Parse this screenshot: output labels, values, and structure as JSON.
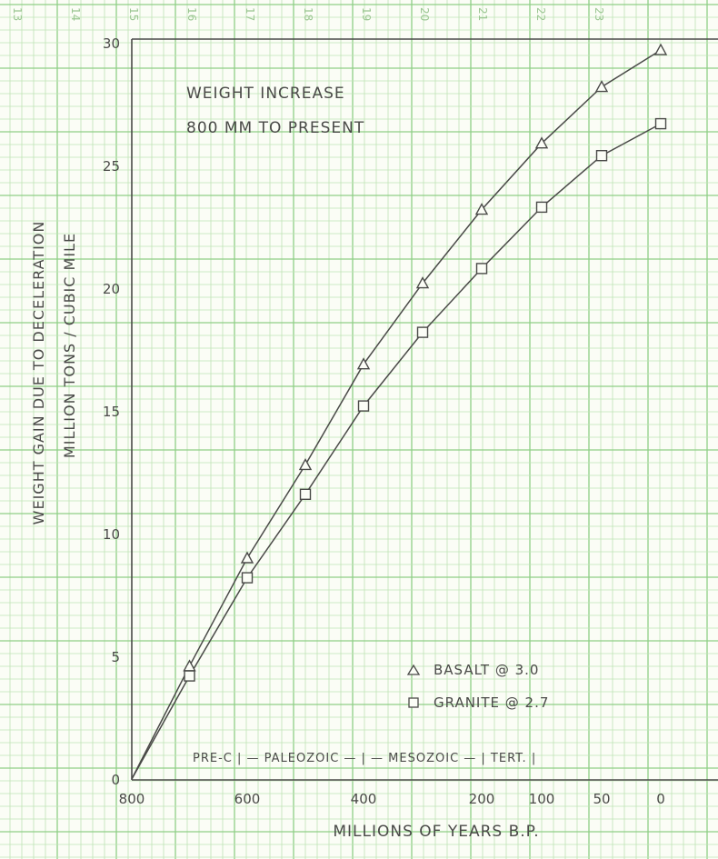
{
  "chart_data": {
    "type": "line",
    "title": "WEIGHT INCREASE",
    "subtitle": "800 MM TO PRESENT",
    "xlabel": "MILLIONS OF YEARS B.P.",
    "ylabel_line1": "WEIGHT GAIN DUE TO DECELERATION",
    "ylabel_line2": "MILLION TONS / CUBIC MILE",
    "xlim": [
      800,
      0
    ],
    "ylim": [
      0,
      30
    ],
    "x_ticks": [
      {
        "value": 800,
        "label": "800"
      },
      {
        "value": 600,
        "label": "600"
      },
      {
        "value": 400,
        "label": "400"
      },
      {
        "value": 200,
        "label": "200"
      },
      {
        "value": 100,
        "label": "100"
      },
      {
        "value": 50,
        "label": "50"
      },
      {
        "value": 0,
        "label": "0"
      }
    ],
    "y_ticks": [
      {
        "value": 0,
        "label": "0"
      },
      {
        "value": 5,
        "label": "5"
      },
      {
        "value": 10,
        "label": "10"
      },
      {
        "value": 15,
        "label": "15"
      },
      {
        "value": 20,
        "label": "20"
      },
      {
        "value": 25,
        "label": "25"
      },
      {
        "value": 30,
        "label": "30"
      }
    ],
    "top_numbers": [
      "13",
      "14",
      "15",
      "16",
      "17",
      "18",
      "19",
      "20",
      "21",
      "22",
      "23"
    ],
    "series": [
      {
        "name": "BASALT @ 3.0",
        "marker": "triangle",
        "points": [
          [
            800,
            0
          ],
          [
            700,
            4.6
          ],
          [
            600,
            9.0
          ],
          [
            500,
            12.8
          ],
          [
            400,
            16.9
          ],
          [
            300,
            20.2
          ],
          [
            200,
            23.2
          ],
          [
            100,
            25.9
          ],
          [
            50,
            28.2
          ],
          [
            0,
            29.7
          ]
        ]
      },
      {
        "name": "GRANITE @ 2.7",
        "marker": "square",
        "points": [
          [
            800,
            0
          ],
          [
            700,
            4.2
          ],
          [
            600,
            8.2
          ],
          [
            500,
            11.6
          ],
          [
            400,
            15.2
          ],
          [
            300,
            18.2
          ],
          [
            200,
            20.8
          ],
          [
            100,
            23.3
          ],
          [
            50,
            25.4
          ],
          [
            0,
            26.7
          ]
        ]
      }
    ],
    "era_bar": {
      "label": "PRE-C | — PALEOZOIC — | — MESOZOIC — | TERT. |"
    },
    "grid": true,
    "legend_position": "bottom-right",
    "colors": {
      "grid_minor": "#bfe3b4",
      "grid_major": "#8fcf86",
      "ink": "#4a4a48",
      "paper": "#fbfdf6"
    }
  }
}
